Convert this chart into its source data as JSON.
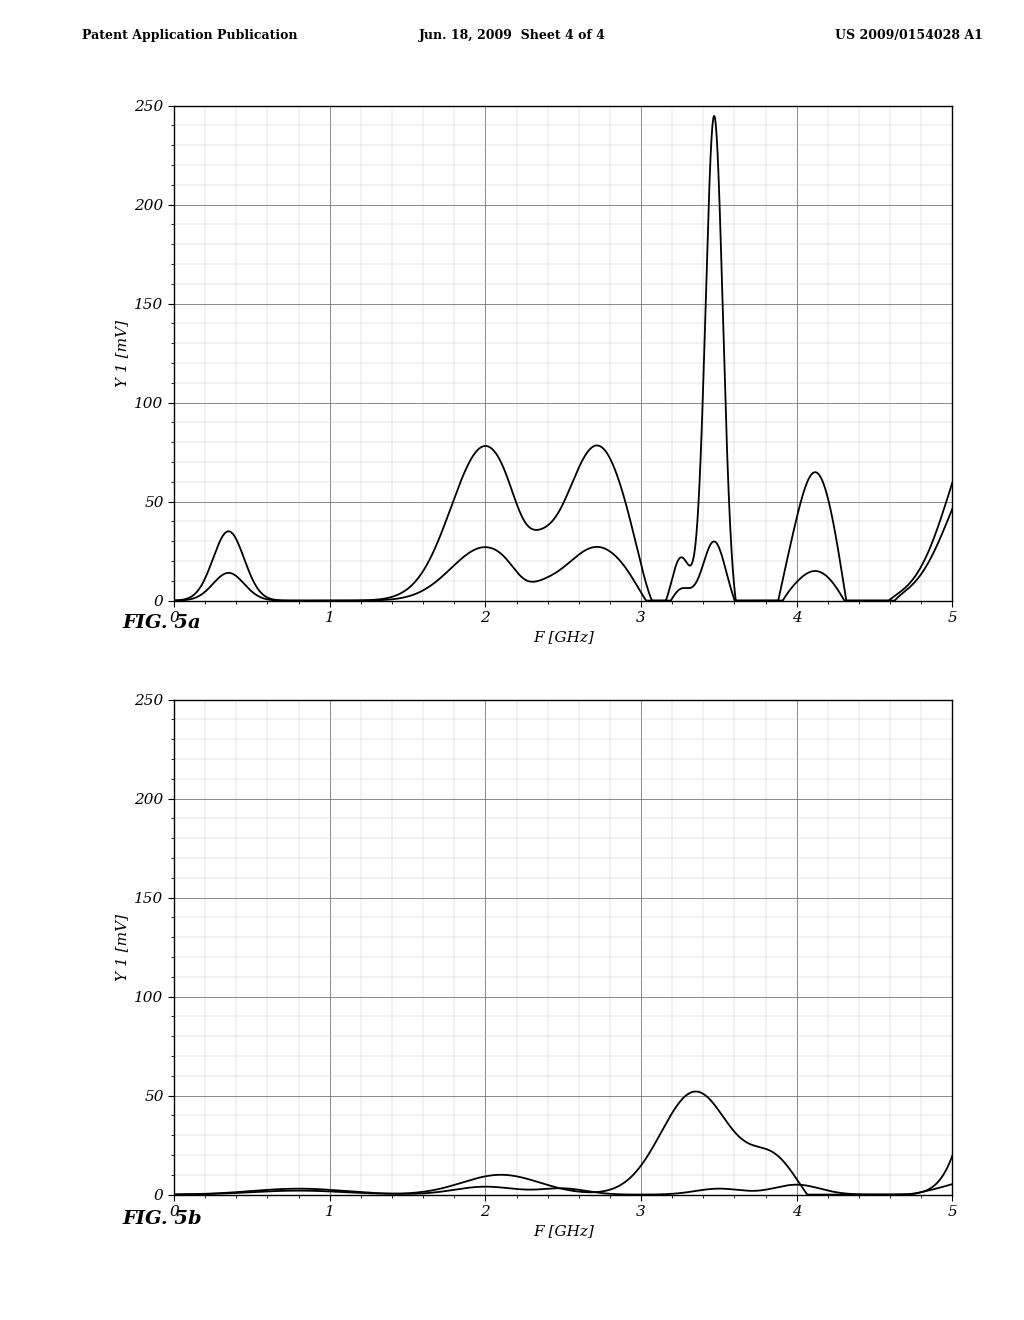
{
  "header_left": "Patent Application Publication",
  "header_center": "Jun. 18, 2009  Sheet 4 of 4",
  "header_right": "US 2009/0154028 A1",
  "fig_label_a": "FIG. 5a",
  "fig_label_b": "FIG. 5b",
  "ylabel": "Y 1 [mV]",
  "xlabel": "F [GHz]",
  "xlim": [
    0,
    5
  ],
  "ylim": [
    0,
    250
  ],
  "yticks": [
    0,
    50,
    100,
    150,
    200,
    250
  ],
  "xticks": [
    0,
    1,
    2,
    3,
    4,
    5
  ],
  "line_color": "#000000",
  "background_color": "#ffffff",
  "grid_major_color": "#777777",
  "grid_minor_color": "#cccccc"
}
